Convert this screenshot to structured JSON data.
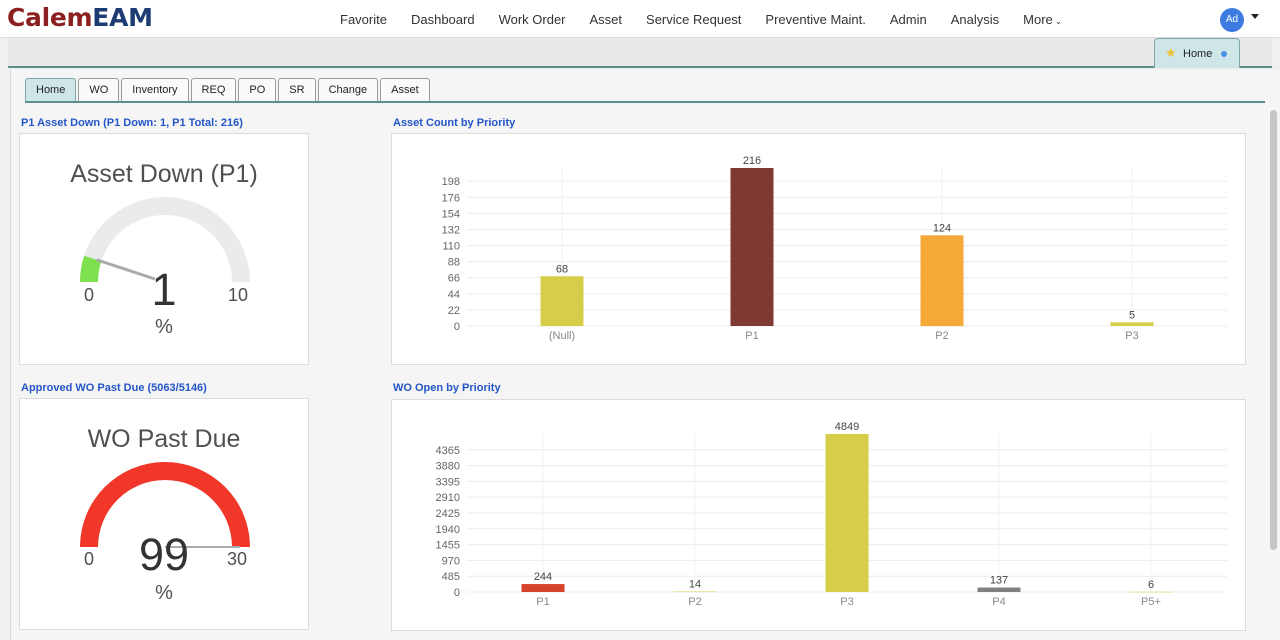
{
  "app": {
    "logo_part1": "Calem",
    "logo_part2": "EAM"
  },
  "nav": {
    "items": [
      "Favorite",
      "Dashboard",
      "Work Order",
      "Asset",
      "Service Request",
      "Preventive Maint.",
      "Admin",
      "Analysis"
    ],
    "more_label": "More"
  },
  "user": {
    "avatar_initials": "Ad"
  },
  "window_tab": {
    "label": "Home"
  },
  "subtabs": [
    "Home",
    "WO",
    "Inventory",
    "REQ",
    "PO",
    "SR",
    "Change",
    "Asset"
  ],
  "gauge1": {
    "section_title": "P1 Asset Down (P1 Down: 1, P1 Total: 216)",
    "title": "Asset Down (P1)",
    "min": "0",
    "max": "10",
    "value": "1",
    "unit": "%",
    "value_num": 1,
    "max_num": 10,
    "fill_color": "#7de04f"
  },
  "gauge2": {
    "section_title": "Approved WO Past Due (5063/5146)",
    "title": "WO Past Due",
    "min": "0",
    "max": "30",
    "value": "99",
    "unit": "%",
    "value_num": 99,
    "max_num": 30,
    "fill_color": "#f0372a"
  },
  "chart_data": [
    {
      "type": "bar",
      "title": "Asset Count by Priority",
      "categories": [
        "(Null)",
        "P1",
        "P2",
        "P3"
      ],
      "values": [
        68,
        216,
        124,
        5
      ],
      "colors": [
        "#d6cd48",
        "#7f3a33",
        "#f4a939",
        "#d6cd48"
      ],
      "y_ticks": [
        0,
        22,
        44,
        66,
        88,
        110,
        132,
        154,
        176,
        198
      ],
      "ylim": [
        0,
        216
      ],
      "grid": true
    },
    {
      "type": "bar",
      "title": "WO Open by Priority",
      "categories": [
        "P1",
        "P2",
        "P3",
        "P4",
        "P5+"
      ],
      "values": [
        244,
        14,
        4849,
        137,
        6
      ],
      "colors": [
        "#d6442d",
        "#d6cd48",
        "#d6cd48",
        "#808080",
        "#d6cd48"
      ],
      "y_ticks": [
        0,
        485,
        970,
        1455,
        1940,
        2425,
        2910,
        3395,
        3880,
        4365
      ],
      "ylim": [
        0,
        4849
      ],
      "grid": true
    }
  ]
}
